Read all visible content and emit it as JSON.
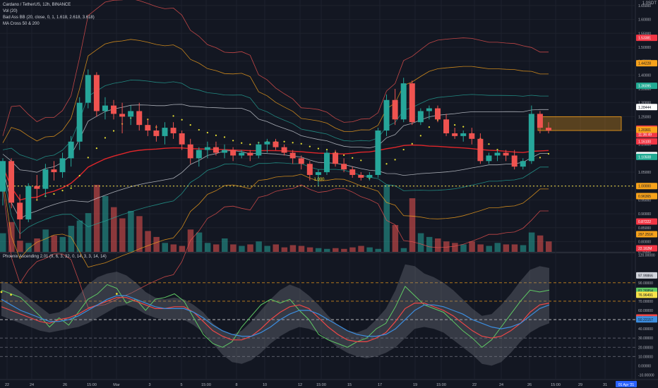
{
  "legend": {
    "symbol": "Cardano / TetherUS, 12h, BINANCE",
    "vol": "Vol (20)",
    "bb": "Bad Ass BB (20, close, 0, 1, 1.618, 2.618, 3.618)",
    "ma": "MA Cross 50 & 200",
    "osc": "Phoenix Ascending 2.01 (9, 6, 3, 32, 0, 14, 3, 3, 14, 14)"
  },
  "currency": "1.0SDT",
  "chart_data": [
    {
      "type": "candlestick",
      "x_labels": [
        "22",
        "24",
        "26",
        "15:00",
        "Mar",
        "3",
        "5",
        "15:00",
        "8",
        "10",
        "12",
        "15:00",
        "15",
        "17",
        "19",
        "15:00",
        "22",
        "24",
        "26",
        "15:00",
        "29",
        "31",
        "15:00"
      ],
      "y_ticks": [
        "1.65000",
        "1.60000",
        "1.55000",
        "1.50000",
        "1.45000",
        "1.40000",
        "1.35000",
        "1.30000",
        "1.25000",
        "1.20000",
        "1.15000",
        "1.10000",
        "1.05000",
        "1.00000",
        "0.95000",
        "0.90000",
        "0.85000",
        "0.80000",
        "0.76300"
      ],
      "price_labels": [
        {
          "text": "1.53381",
          "color": "#f23645"
        },
        {
          "text": "1.44228",
          "color": "#f7a21b"
        },
        {
          "text": "1.36095",
          "color": "#22ab94"
        },
        {
          "text": "1.28444",
          "color": "#ffffff"
        },
        {
          "text": "1.20681",
          "color": "#f23645"
        },
        {
          "text": "11:36:49",
          "color": "#f23645"
        },
        {
          "text": "1.20301",
          "color": "#f7a21b"
        },
        {
          "text": "1.16100",
          "color": "#f23645"
        },
        {
          "text": "1.11158",
          "color": "#ffffff"
        },
        {
          "text": "1.10508",
          "color": "#22ab94"
        },
        {
          "text": "1.00000",
          "color": "#f7a21b"
        },
        {
          "text": "0.96365",
          "color": "#f7a21b"
        },
        {
          "text": "0.87222",
          "color": "#f23645"
        },
        {
          "text": "297.251K",
          "color": "#f7a21b"
        },
        {
          "text": "22.162M",
          "color": "#f23645"
        }
      ],
      "annotation": "1.000",
      "candles": [
        [
          0.98,
          1.1,
          0.93,
          1.09
        ],
        [
          1.09,
          1.1,
          0.92,
          0.94
        ],
        [
          0.94,
          0.97,
          0.81,
          0.88
        ],
        [
          0.88,
          1.01,
          0.87,
          1.0
        ],
        [
          1.0,
          1.04,
          0.95,
          0.99
        ],
        [
          0.99,
          1.08,
          0.96,
          1.06
        ],
        [
          1.06,
          1.09,
          1.02,
          1.05
        ],
        [
          1.05,
          1.12,
          1.03,
          1.1
        ],
        [
          1.1,
          1.18,
          1.07,
          1.16
        ],
        [
          1.16,
          1.32,
          1.13,
          1.3
        ],
        [
          1.3,
          1.42,
          1.28,
          1.4
        ],
        [
          1.4,
          1.41,
          1.25,
          1.27
        ],
        [
          1.27,
          1.32,
          1.24,
          1.29
        ],
        [
          1.29,
          1.31,
          1.24,
          1.26
        ],
        [
          1.26,
          1.3,
          1.19,
          1.25
        ],
        [
          1.25,
          1.29,
          1.22,
          1.27
        ],
        [
          1.27,
          1.3,
          1.2,
          1.22
        ],
        [
          1.22,
          1.24,
          1.18,
          1.2
        ],
        [
          1.2,
          1.22,
          1.16,
          1.18
        ],
        [
          1.18,
          1.23,
          1.15,
          1.21
        ],
        [
          1.21,
          1.23,
          1.17,
          1.19
        ],
        [
          1.19,
          1.2,
          1.13,
          1.15
        ],
        [
          1.15,
          1.17,
          1.08,
          1.1
        ],
        [
          1.1,
          1.14,
          1.07,
          1.13
        ],
        [
          1.13,
          1.16,
          1.1,
          1.14
        ],
        [
          1.14,
          1.16,
          1.11,
          1.12
        ],
        [
          1.12,
          1.15,
          1.1,
          1.13
        ],
        [
          1.13,
          1.14,
          1.09,
          1.11
        ],
        [
          1.11,
          1.13,
          1.1,
          1.12
        ],
        [
          1.12,
          1.13,
          1.09,
          1.11
        ],
        [
          1.11,
          1.16,
          1.1,
          1.15
        ],
        [
          1.15,
          1.17,
          1.12,
          1.16
        ],
        [
          1.16,
          1.17,
          1.13,
          1.14
        ],
        [
          1.14,
          1.15,
          1.11,
          1.12
        ],
        [
          1.12,
          1.13,
          1.08,
          1.1
        ],
        [
          1.1,
          1.11,
          1.06,
          1.08
        ],
        [
          1.08,
          1.09,
          1.02,
          1.04
        ],
        [
          1.04,
          1.06,
          1.0,
          1.05
        ],
        [
          1.05,
          1.13,
          1.04,
          1.12
        ],
        [
          1.12,
          1.13,
          1.07,
          1.08
        ],
        [
          1.08,
          1.1,
          1.05,
          1.06
        ],
        [
          1.06,
          1.07,
          1.03,
          1.04
        ],
        [
          1.04,
          1.05,
          1.02,
          1.03
        ],
        [
          1.03,
          1.05,
          1.02,
          1.04
        ],
        [
          1.04,
          1.21,
          1.03,
          1.2
        ],
        [
          1.2,
          1.33,
          1.18,
          1.31
        ],
        [
          1.31,
          1.35,
          1.22,
          1.24
        ],
        [
          1.24,
          1.39,
          1.23,
          1.37
        ],
        [
          1.37,
          1.38,
          1.22,
          1.23
        ],
        [
          1.23,
          1.28,
          1.22,
          1.27
        ],
        [
          1.27,
          1.29,
          1.24,
          1.28
        ],
        [
          1.28,
          1.29,
          1.23,
          1.24
        ],
        [
          1.24,
          1.26,
          1.18,
          1.19
        ],
        [
          1.19,
          1.21,
          1.17,
          1.18
        ],
        [
          1.18,
          1.2,
          1.16,
          1.19
        ],
        [
          1.19,
          1.21,
          1.15,
          1.17
        ],
        [
          1.17,
          1.19,
          1.08,
          1.09
        ],
        [
          1.09,
          1.12,
          1.08,
          1.11
        ],
        [
          1.11,
          1.13,
          1.09,
          1.12
        ],
        [
          1.12,
          1.13,
          1.09,
          1.11
        ],
        [
          1.11,
          1.13,
          1.06,
          1.07
        ],
        [
          1.07,
          1.1,
          1.06,
          1.09
        ],
        [
          1.09,
          1.29,
          1.08,
          1.26
        ],
        [
          1.26,
          1.27,
          1.19,
          1.21
        ],
        [
          1.21,
          1.23,
          1.19,
          1.2
        ]
      ],
      "volume": [
        25,
        40,
        15,
        12,
        18,
        30,
        22,
        20,
        35,
        42,
        52,
        90,
        75,
        60,
        45,
        55,
        48,
        28,
        20,
        12,
        10,
        8,
        30,
        26,
        12,
        10,
        18,
        10,
        8,
        10,
        14,
        8,
        10,
        6,
        9,
        8,
        6,
        5,
        4,
        5,
        4,
        6,
        8,
        6,
        4,
        90,
        36,
        5,
        72,
        25,
        20,
        18,
        14,
        12,
        10,
        14,
        10,
        8,
        12,
        10,
        10,
        9,
        26,
        22,
        14
      ],
      "zones": [
        {
          "from": 1.2,
          "to": 1.25,
          "color": "#f7a21b"
        }
      ],
      "hlines": [
        {
          "value": 1.0,
          "color": "#f7e24a",
          "style": "dotted"
        }
      ]
    },
    {
      "type": "line",
      "name_ref": "osc",
      "y_ticks": [
        "120.00000",
        "97.99866",
        "90.00000",
        "81.26854",
        "76.96491",
        "70.00000",
        "60.00000",
        "52.33358",
        "50.22157",
        "40.00000",
        "30.00000",
        "20.00000",
        "10.00000",
        "0.00000",
        "-10.00000"
      ],
      "hlines": [
        {
          "value": 90,
          "color": "#f7a21b"
        },
        {
          "value": 70,
          "color": "#f7a21b"
        },
        {
          "value": 50,
          "color": "#ffffff"
        },
        {
          "value": 30,
          "color": "#787b86"
        },
        {
          "value": 20,
          "color": "#787b86"
        },
        {
          "value": 10,
          "color": "#787b86"
        }
      ],
      "series_values": {
        "green": [
          82,
          78,
          74,
          64,
          54,
          42,
          52,
          44,
          58,
          72,
          78,
          88,
          84,
          68,
          72,
          60,
          72,
          74,
          78,
          70,
          52,
          34,
          24,
          20,
          26,
          42,
          54,
          66,
          72,
          68,
          72,
          60,
          50,
          34,
          28,
          24,
          20,
          26,
          30,
          40,
          46,
          64,
          86,
          76,
          66,
          62,
          58,
          48,
          38,
          30,
          20,
          28,
          42,
          56,
          70,
          82,
          80,
          82
        ],
        "red": [
          64,
          60,
          56,
          52,
          48,
          46,
          50,
          52,
          56,
          62,
          66,
          70,
          74,
          74,
          70,
          66,
          62,
          62,
          64,
          64,
          58,
          48,
          38,
          32,
          28,
          28,
          32,
          40,
          50,
          58,
          64,
          66,
          62,
          52,
          42,
          34,
          28,
          26,
          26,
          30,
          36,
          48,
          62,
          68,
          68,
          64,
          60,
          54,
          46,
          38,
          32,
          30,
          32,
          38,
          46,
          58,
          66,
          68
        ],
        "blue": [
          72,
          66,
          60,
          56,
          52,
          48,
          48,
          50,
          54,
          60,
          66,
          72,
          76,
          76,
          72,
          68,
          64,
          62,
          62,
          62,
          58,
          52,
          44,
          38,
          34,
          32,
          32,
          36,
          42,
          50,
          56,
          60,
          60,
          56,
          50,
          44,
          38,
          34,
          32,
          32,
          34,
          40,
          50,
          60,
          66,
          66,
          64,
          60,
          56,
          50,
          46,
          42,
          40,
          42,
          46,
          54,
          62,
          66
        ],
        "band_hi": [
          92,
          88,
          80,
          72,
          64,
          56,
          58,
          64,
          76,
          88,
          96,
          100,
          102,
          98,
          90,
          80,
          74,
          72,
          74,
          72,
          66,
          58,
          46,
          38,
          34,
          38,
          48,
          60,
          72,
          82,
          88,
          84,
          76,
          66,
          54,
          44,
          38,
          36,
          40,
          50,
          62,
          82,
          110,
          108,
          100,
          96,
          90,
          82,
          72,
          62,
          54,
          56,
          66,
          78,
          92,
          104,
          108,
          106
        ],
        "band_lo": [
          54,
          50,
          46,
          42,
          38,
          36,
          38,
          40,
          42,
          46,
          52,
          58,
          64,
          66,
          62,
          56,
          52,
          50,
          50,
          50,
          44,
          36,
          24,
          12,
          4,
          2,
          6,
          14,
          24,
          32,
          38,
          42,
          40,
          36,
          28,
          20,
          14,
          10,
          8,
          10,
          14,
          20,
          30,
          40,
          42,
          40,
          36,
          28,
          20,
          12,
          2,
          0,
          4,
          14,
          26,
          36,
          42,
          46
        ],
        "dots_yellow": [
          [
            0,
            80
          ],
          [
            1,
            77
          ],
          [
            12,
            78
          ]
        ]
      }
    }
  ]
}
